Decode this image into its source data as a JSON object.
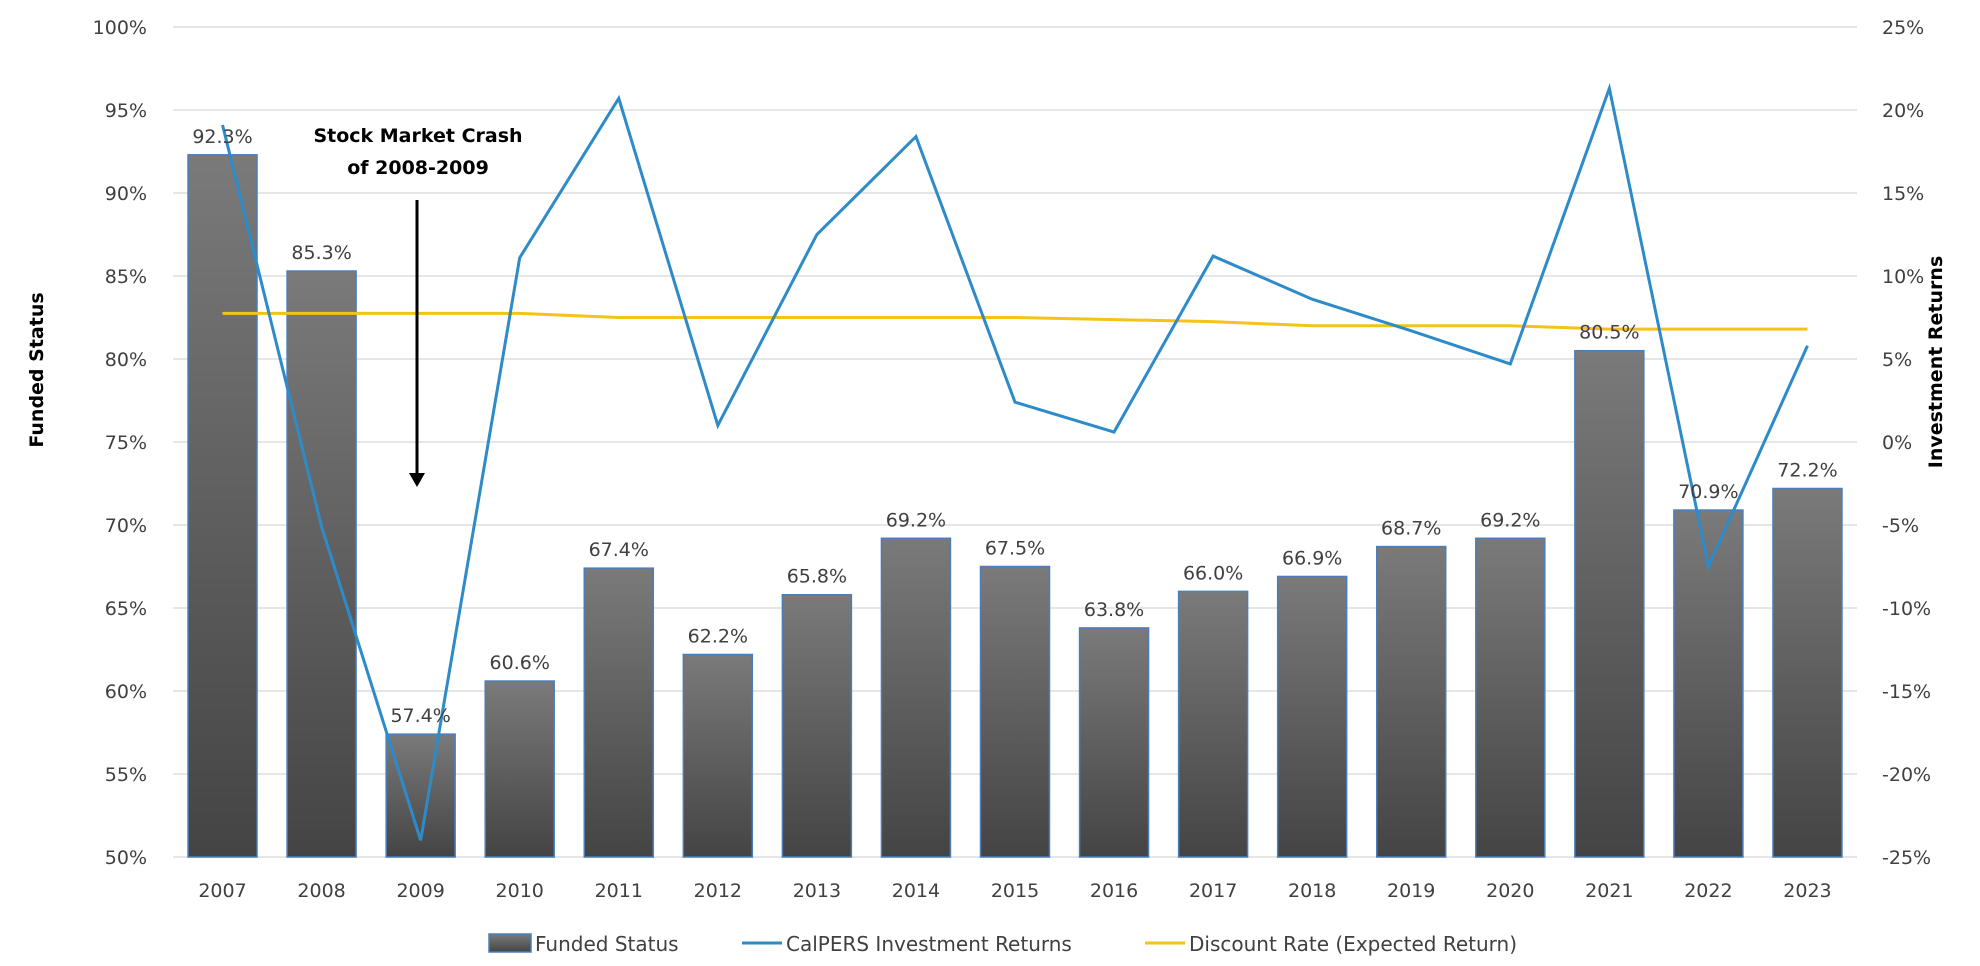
{
  "chart_data": {
    "type": "bar",
    "categories": [
      "2007",
      "2008",
      "2009",
      "2010",
      "2011",
      "2012",
      "2013",
      "2014",
      "2015",
      "2016",
      "2017",
      "2018",
      "2019",
      "2020",
      "2021",
      "2022",
      "2023"
    ],
    "series": [
      {
        "name": "Funded Status",
        "type": "bar",
        "axis": "left",
        "values": [
          92.3,
          85.3,
          57.4,
          60.6,
          67.4,
          62.2,
          65.8,
          69.2,
          67.5,
          63.8,
          66.0,
          66.9,
          68.7,
          69.2,
          80.5,
          70.9,
          72.2
        ],
        "labels": [
          "92.3%",
          "85.3%",
          "57.4%",
          "60.6%",
          "67.4%",
          "62.2%",
          "65.8%",
          "69.2%",
          "67.5%",
          "63.8%",
          "66.0%",
          "66.9%",
          "68.7%",
          "69.2%",
          "80.5%",
          "70.9%",
          "72.2%"
        ]
      },
      {
        "name": "CalPERS Investment Returns",
        "type": "line",
        "axis": "right",
        "values": [
          19.1,
          -5.1,
          -24.0,
          11.1,
          20.7,
          1.0,
          12.5,
          18.4,
          2.4,
          0.6,
          11.2,
          8.6,
          6.7,
          4.7,
          21.3,
          -7.5,
          5.8
        ]
      },
      {
        "name": "Discount Rate (Expected Return)",
        "type": "line",
        "axis": "right",
        "values": [
          7.75,
          7.75,
          7.75,
          7.75,
          7.5,
          7.5,
          7.5,
          7.5,
          7.5,
          7.375,
          7.25,
          7.0,
          7.0,
          7.0,
          6.8,
          6.8,
          6.8
        ]
      }
    ],
    "colors": {
      "bar_top": "#7a7a7a",
      "bar_bottom": "#444444",
      "bar_border": "#4a7ebb",
      "returns": "#2e8bc9",
      "discount": "#f5c218",
      "grid": "#e6e6e6"
    },
    "ylabel": "Funded Status",
    "y2label": "Investment Returns",
    "ylim": [
      50,
      100
    ],
    "y2lim": [
      -25,
      25
    ],
    "yticks": [
      "50%",
      "55%",
      "60%",
      "65%",
      "70%",
      "75%",
      "80%",
      "85%",
      "90%",
      "95%",
      "100%"
    ],
    "y2ticks": [
      "-25%",
      "-20%",
      "-15%",
      "-10%",
      "-5%",
      "0%",
      "5%",
      "10%",
      "15%",
      "20%",
      "25%"
    ],
    "grid": true,
    "legend_position": "bottom",
    "annotation": {
      "lines": [
        "Stock Market Crash",
        "of 2008-2009"
      ],
      "target_category": "2009"
    }
  }
}
